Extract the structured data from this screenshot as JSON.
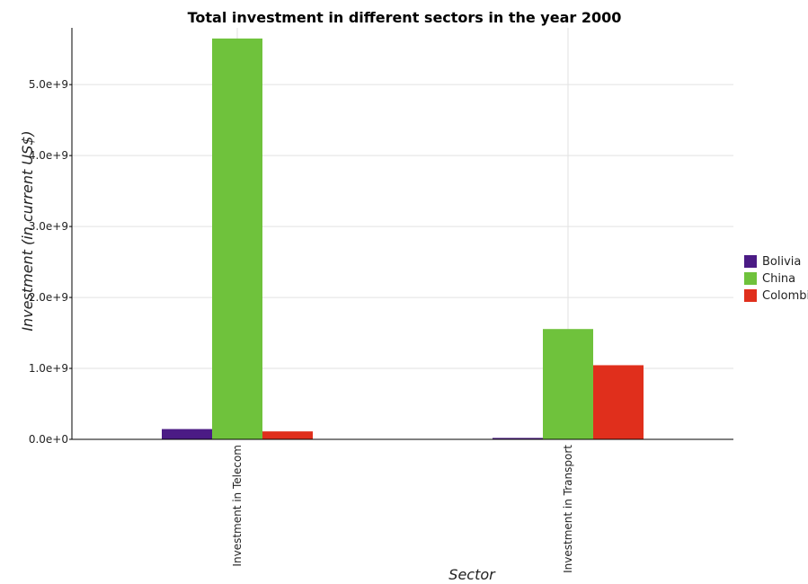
{
  "chart_data": {
    "type": "bar",
    "title": "Total investment in different sectors in the year 2000",
    "xlabel": "Sector",
    "ylabel": "Investment (in current US$)",
    "categories": [
      "Investment in Telecom",
      "Investment in Transport"
    ],
    "series": [
      {
        "name": "Bolivia",
        "color": "#4b1b85",
        "values": [
          145000000,
          20000000
        ]
      },
      {
        "name": "China",
        "color": "#6fc23c",
        "values": [
          5650000000,
          1555000000
        ]
      },
      {
        "name": "Colombia",
        "color": "#e02f1c",
        "values": [
          112000000,
          1045000000
        ]
      }
    ],
    "yticks": [
      0,
      1000000000,
      2000000000,
      3000000000,
      4000000000,
      5000000000
    ],
    "ytick_labels": [
      "0.0e+0",
      "1.0e+9",
      "2.0e+9",
      "3.0e+9",
      "4.0e+9",
      "5.0e+9"
    ],
    "ylim": [
      0,
      5800000000
    ],
    "grid": true,
    "legend_position": "right"
  }
}
